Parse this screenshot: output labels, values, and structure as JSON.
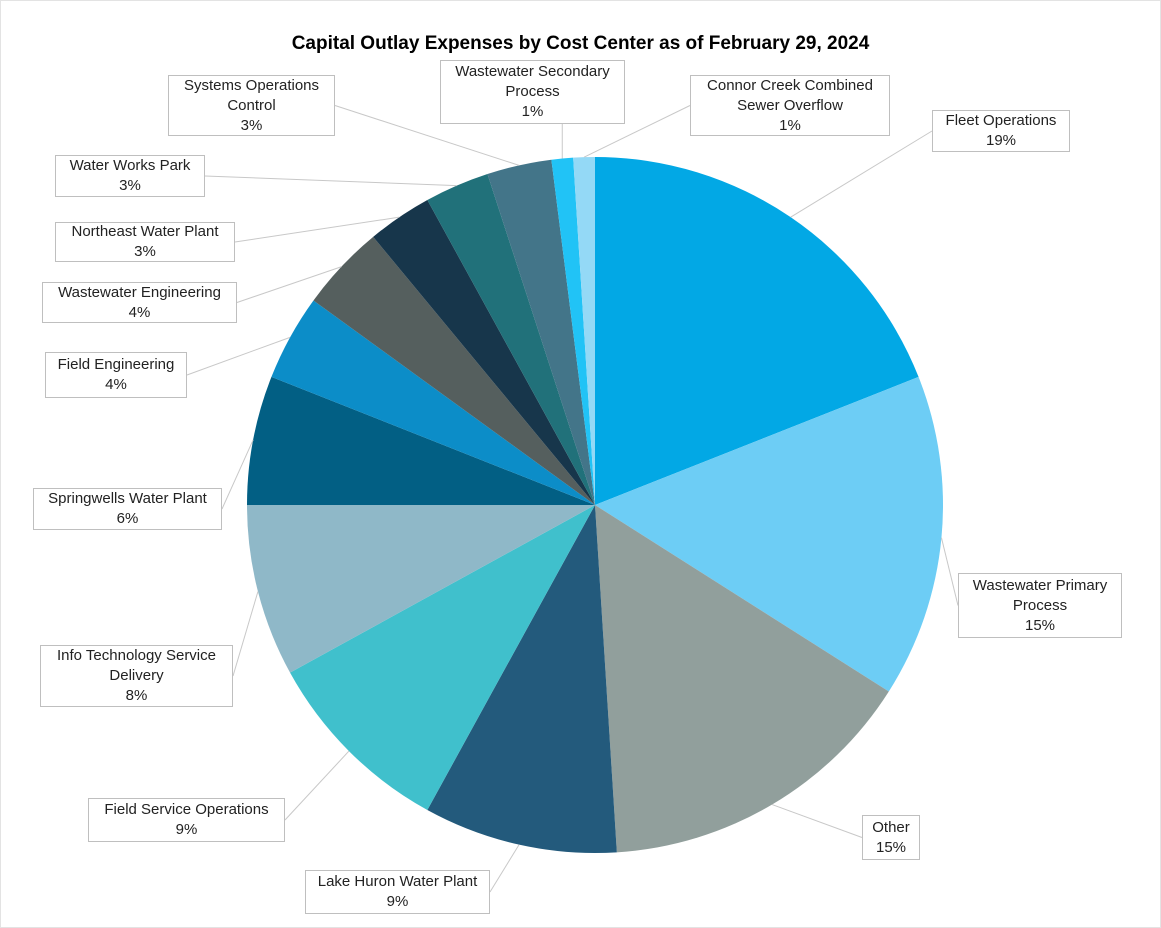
{
  "chart_data": {
    "type": "pie",
    "title": "Capital Outlay Expenses by Cost Center as of February 29, 2024",
    "categories": [
      "Fleet Operations",
      "Wastewater Primary Process",
      "Other",
      "Lake Huron Water Plant",
      "Field Service Operations",
      "Info Technology Service Delivery",
      "Springwells Water Plant",
      "Field Engineering",
      "Wastewater Engineering",
      "Northeast Water Plant",
      "Water Works Park",
      "Systems Operations Control",
      "Wastewater Secondary Process",
      "Connor Creek Combined Sewer Overflow"
    ],
    "values": [
      19,
      15,
      15,
      9,
      9,
      8,
      6,
      4,
      4,
      3,
      3,
      3,
      1,
      1
    ],
    "value_labels": [
      "19%",
      "15%",
      "15%",
      "9%",
      "9%",
      "8%",
      "6%",
      "4%",
      "4%",
      "3%",
      "3%",
      "3%",
      "1%",
      "1%"
    ],
    "colors": [
      "#02a8e5",
      "#6dcdf5",
      "#919f9c",
      "#235a7c",
      "#40c0cc",
      "#8fb8c8",
      "#025f84",
      "#0c8dc8",
      "#555f5e",
      "#17364b",
      "#21717a",
      "#437589",
      "#21c3f6",
      "#94d9f6"
    ]
  }
}
